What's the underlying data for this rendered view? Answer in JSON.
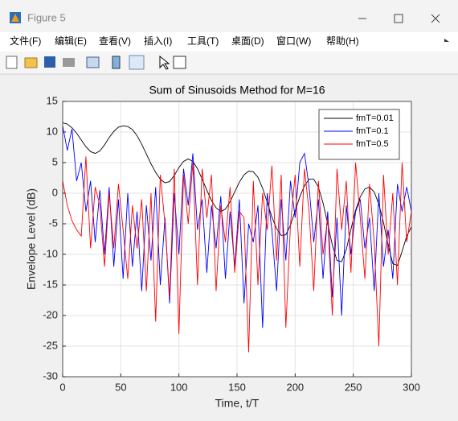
{
  "window": {
    "title": "Figure 5",
    "menus": [
      "文件(F)",
      "编辑(E)",
      "查看(V)",
      "插入(I)",
      "工具(T)",
      "桌面(D)",
      "窗口(W)",
      "帮助(H)"
    ]
  },
  "chart_data": {
    "type": "line",
    "title": "Sum of Sinusoids Method for M=16",
    "x_label": "Time, t/T",
    "y_label": "Envelope Level (dB)",
    "x": [
      0,
      4,
      8,
      12,
      16,
      20,
      24,
      28,
      32,
      36,
      40,
      44,
      48,
      52,
      56,
      60,
      64,
      68,
      72,
      76,
      80,
      84,
      88,
      92,
      96,
      100,
      104,
      108,
      112,
      116,
      120,
      124,
      128,
      132,
      136,
      140,
      144,
      148,
      152,
      156,
      160,
      164,
      168,
      172,
      176,
      180,
      184,
      188,
      192,
      196,
      200,
      204,
      208,
      212,
      216,
      220,
      224,
      228,
      232,
      236,
      240,
      244,
      248,
      252,
      256,
      260,
      264,
      268,
      272,
      276,
      280,
      284,
      288,
      292,
      296,
      300
    ],
    "series": [
      {
        "name": "fmT=0.01",
        "color": "#000000",
        "values": [
          11.5,
          11.3,
          10.7,
          9.8,
          8.7,
          7.6,
          6.8,
          6.5,
          6.9,
          7.9,
          9.1,
          10.1,
          10.8,
          11,
          10.9,
          10.4,
          9.4,
          8,
          6.4,
          4.8,
          3.4,
          2.3,
          1.7,
          1.9,
          2.9,
          4.2,
          5.2,
          5.6,
          5.2,
          4,
          2.3,
          0.5,
          -1.2,
          -2.4,
          -3,
          -2.6,
          -1.4,
          0.2,
          1.8,
          3,
          3.6,
          3.5,
          2.6,
          0.8,
          -1.5,
          -3.9,
          -5.8,
          -6.9,
          -6.8,
          -5.2,
          -2.9,
          -0.6,
          1.2,
          2.3,
          2.3,
          1,
          -1.6,
          -5,
          -8.5,
          -11,
          -11.2,
          -9.2,
          -5.9,
          -2.8,
          -0.6,
          0.7,
          1,
          0.2,
          -1.8,
          -4.8,
          -8.5,
          -11.5,
          -11.8,
          -9.5,
          -7,
          -5.5
        ]
      },
      {
        "name": "fmT=0.1",
        "color": "#0000ff",
        "values": [
          11,
          7,
          10.5,
          2,
          5,
          -3,
          2,
          -8,
          0.5,
          -10,
          1,
          -12,
          -1,
          -14,
          0,
          -12,
          -3,
          -16,
          -2,
          -11,
          1,
          -15,
          -4,
          -18,
          0,
          -10,
          4,
          -2,
          6.5,
          -6,
          -1,
          -13,
          -2,
          -9,
          -0.5,
          -14,
          -3,
          -12,
          -1,
          -18,
          -5,
          -8,
          -2,
          -22,
          0,
          -6,
          -16,
          -1,
          -11,
          2,
          -4,
          5,
          6.5,
          1,
          -8,
          -1,
          -14,
          -3,
          -17,
          -4,
          -20,
          -2,
          -10,
          -3,
          -1,
          -9,
          -4,
          -16,
          0,
          -12,
          -6,
          -14,
          1.5,
          -3,
          1,
          -3
        ]
      },
      {
        "name": "fmT=0.5",
        "color": "#ff0000",
        "values": [
          2,
          -2,
          -4.5,
          -6,
          -7,
          6,
          -9,
          1,
          -2,
          -12,
          0,
          -9,
          1.5,
          -6,
          -14,
          -2,
          -9,
          -1,
          -16,
          0,
          -21,
          3,
          -5,
          -17,
          4,
          -23,
          3,
          -5,
          5,
          -15,
          4,
          -4,
          3,
          -16,
          -2,
          -8,
          1,
          -13,
          -3,
          -4,
          -26,
          2,
          -15,
          0,
          -6,
          4.5,
          -11,
          3,
          -22,
          -5,
          3,
          -12,
          4,
          -3,
          -16,
          2,
          -10,
          -4,
          -20,
          4,
          -6,
          2,
          -13,
          5,
          -4,
          -14,
          1.5,
          -8,
          -25,
          3,
          -10,
          0,
          -15,
          5,
          -8,
          -3
        ]
      }
    ],
    "xlim": [
      0,
      300
    ],
    "xticks": [
      0,
      50,
      100,
      150,
      200,
      250,
      300
    ],
    "ylim": [
      -30,
      15
    ],
    "yticks": [
      -30,
      -25,
      -20,
      -15,
      -10,
      -5,
      0,
      5,
      10,
      15
    ],
    "grid": true,
    "legend": "upper right"
  }
}
